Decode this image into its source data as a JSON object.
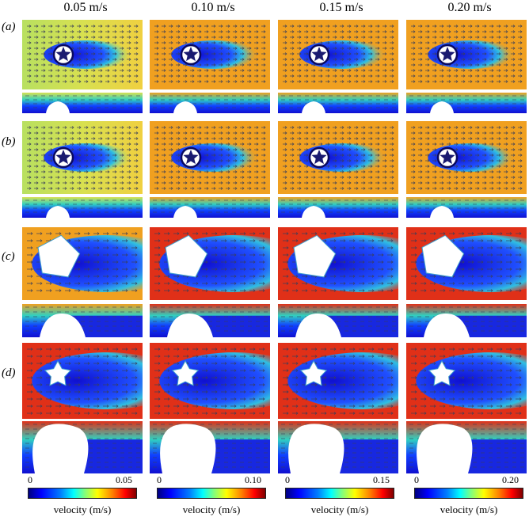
{
  "columns": [
    "0.05 m/s",
    "0.10 m/s",
    "0.15 m/s",
    "0.20 m/s"
  ],
  "rows": [
    "(a)",
    "(b)",
    "(c)",
    "(d)"
  ],
  "colorbars": [
    {
      "min": "0",
      "max": "0.05",
      "label": "velocity (m/s)"
    },
    {
      "min": "0",
      "max": "0.10",
      "label": "velocity (m/s)"
    },
    {
      "min": "0",
      "max": "0.15",
      "label": "velocity (m/s)"
    },
    {
      "min": "0",
      "max": "0.20",
      "label": "velocity (m/s)"
    }
  ],
  "colors": {
    "field_low": "#1010d0",
    "field_col1_ab": "#d8e050",
    "field_hi": "#f0a020",
    "field_red": "#e03018",
    "arrow": "#3a3f5a"
  }
}
